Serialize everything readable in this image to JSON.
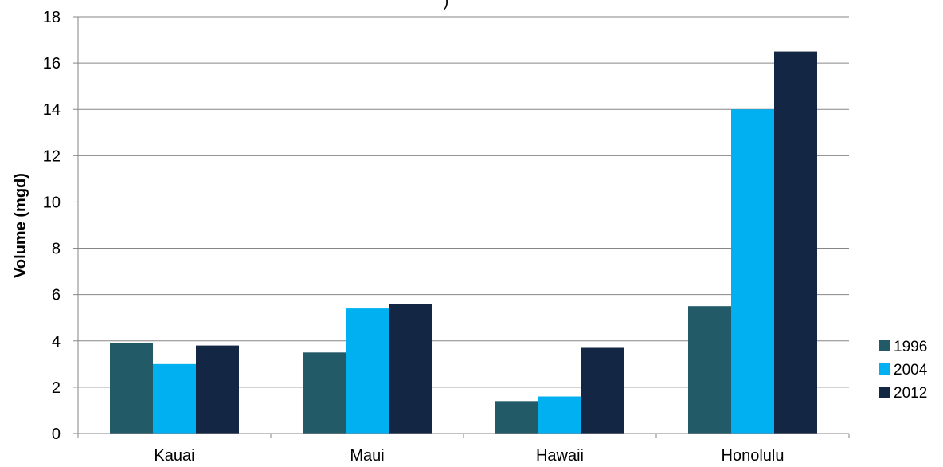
{
  "chart_data": {
    "type": "bar",
    "title_fragment": ")",
    "ylabel": "Volume (mgd)",
    "xlabel": "",
    "categories": [
      "Kauai",
      "Maui",
      "Hawaii",
      "Honolulu"
    ],
    "series": [
      {
        "name": "1996",
        "color": "#225a68",
        "values": [
          3.9,
          3.5,
          1.4,
          5.5
        ]
      },
      {
        "name": "2004",
        "color": "#00b0f0",
        "values": [
          3.0,
          5.4,
          1.6,
          14.0
        ]
      },
      {
        "name": "2012",
        "color": "#132744",
        "values": [
          3.8,
          5.6,
          3.7,
          16.5
        ]
      }
    ],
    "ylim": [
      0,
      18
    ],
    "yticks": [
      "0",
      "2",
      "4",
      "6",
      "8",
      "10",
      "12",
      "14",
      "16",
      "18"
    ],
    "grid": true,
    "legend_position": "right"
  }
}
